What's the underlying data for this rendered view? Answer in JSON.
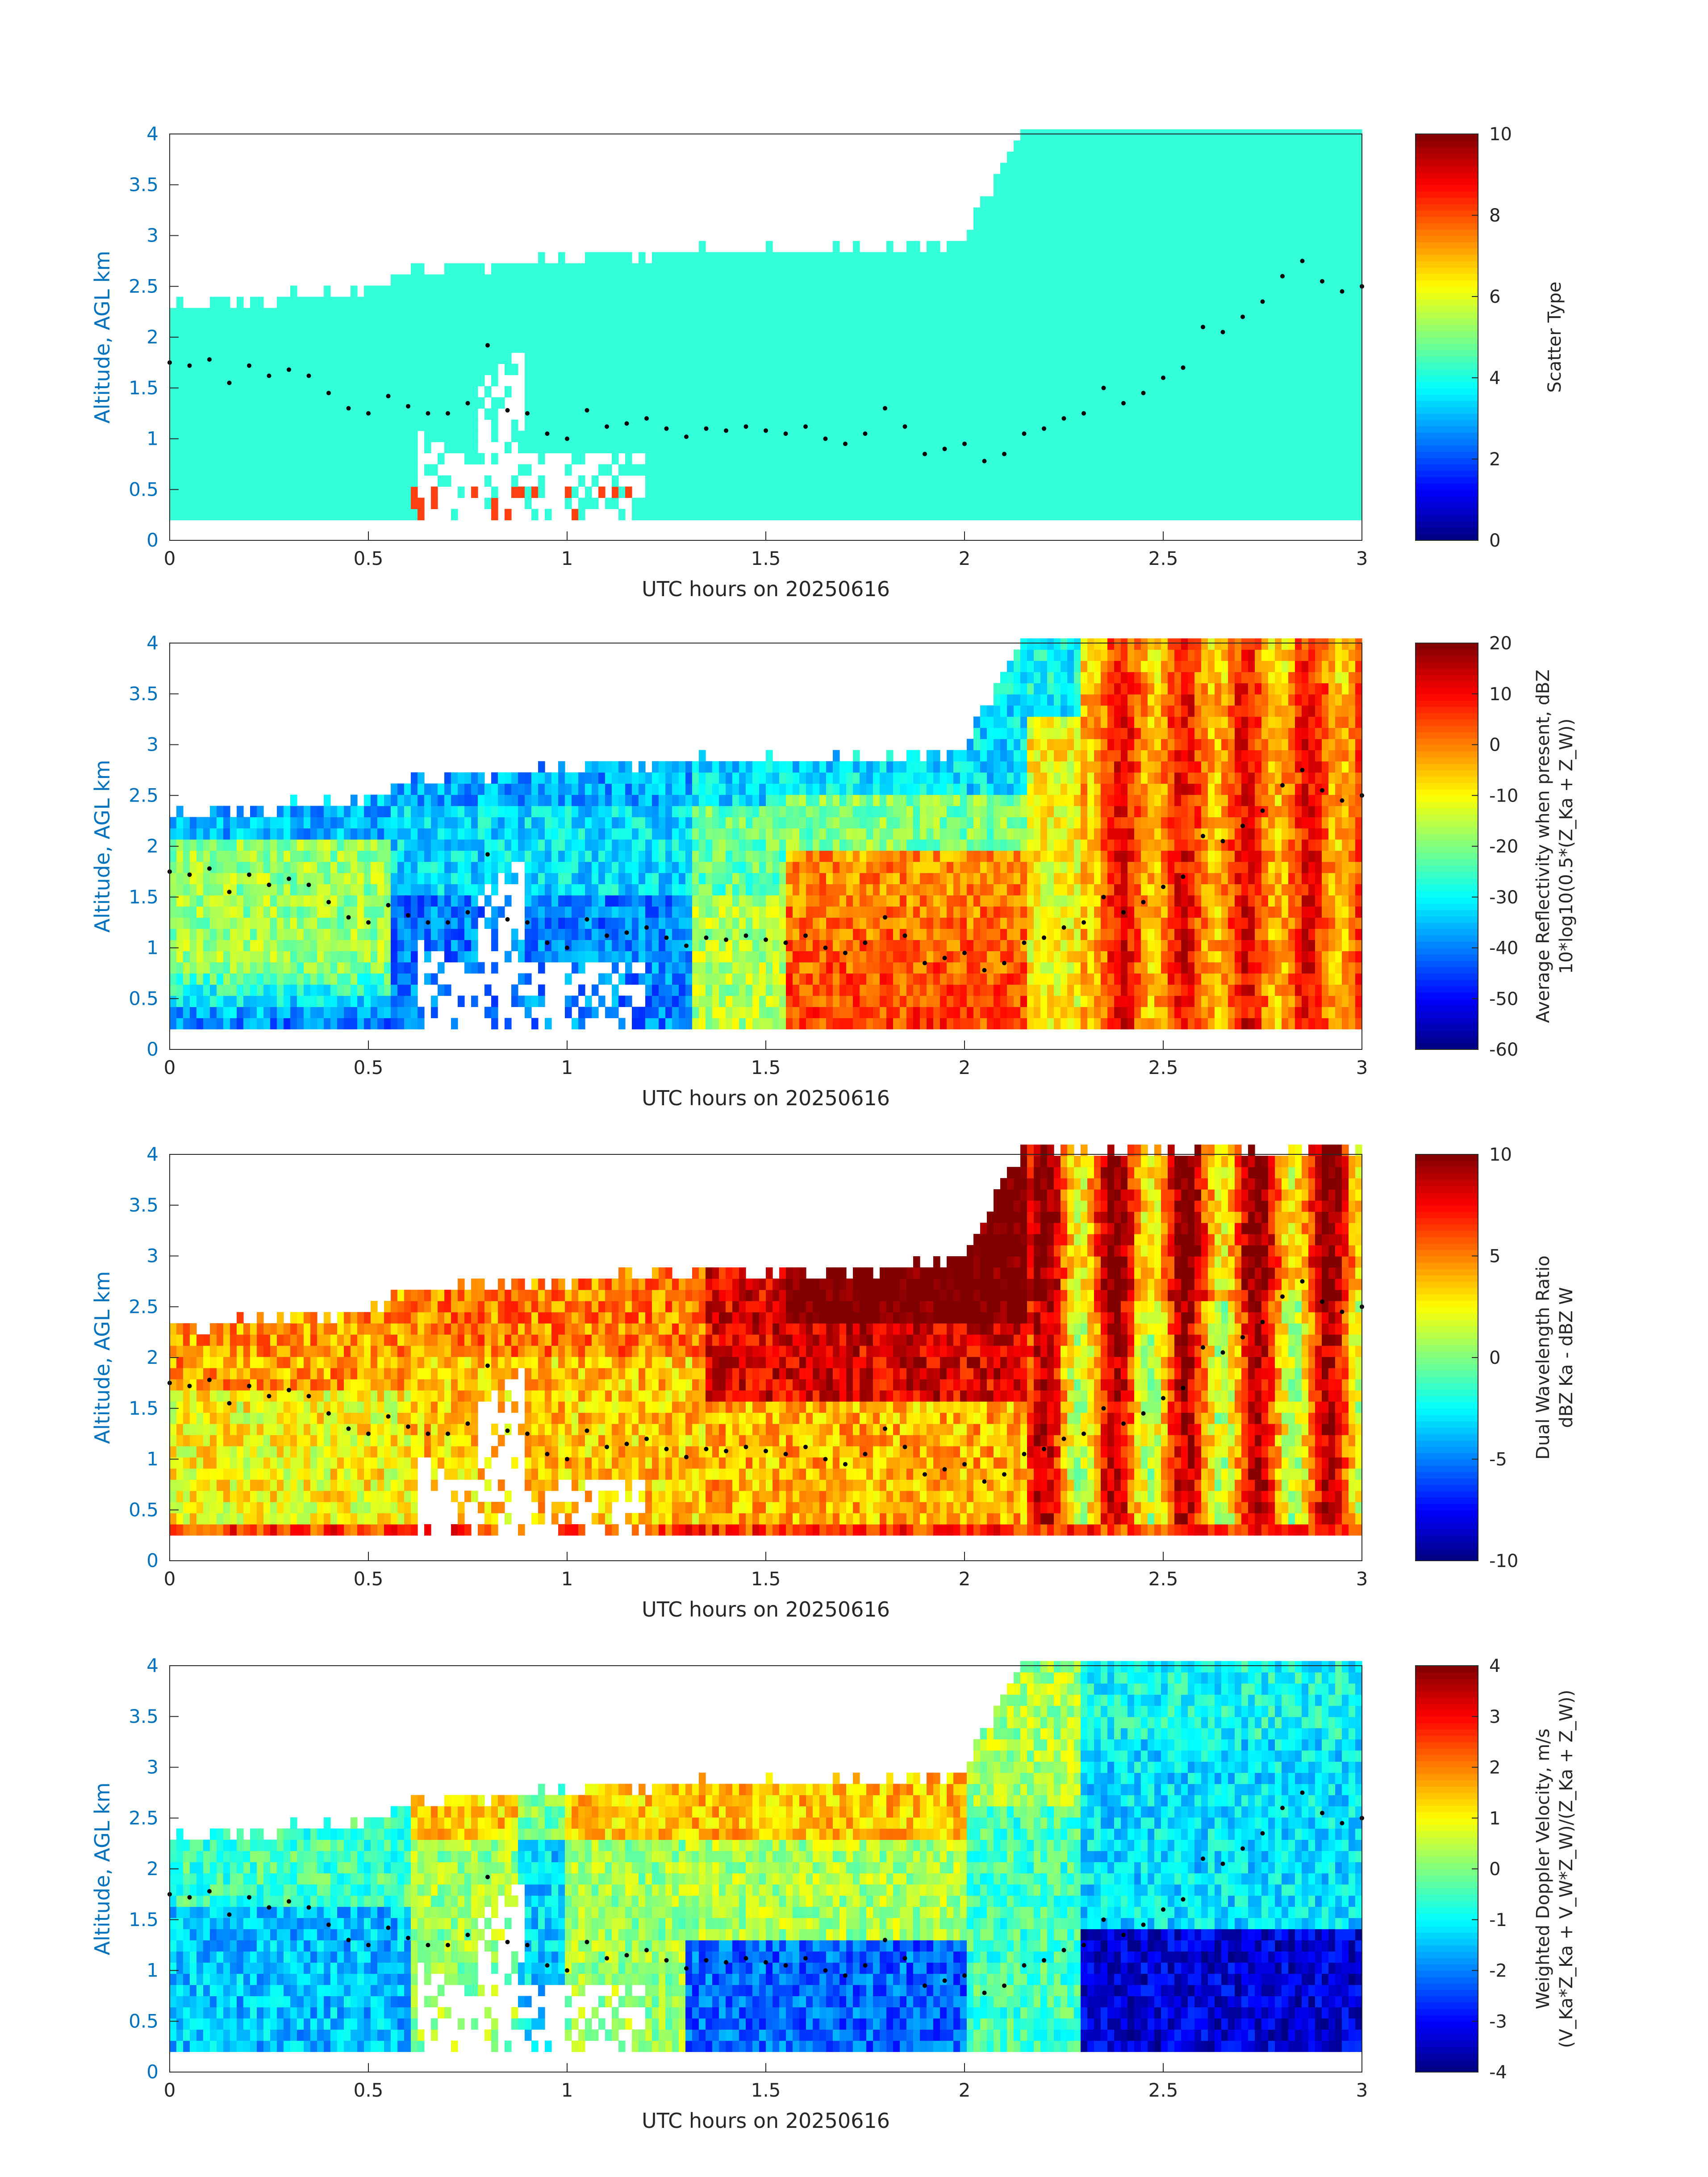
{
  "figure": {
    "panels": [
      {
        "id": "scatter-type",
        "xlabel": "UTC hours on 20250616",
        "ylabel": "Altitude, AGL km",
        "x_ticks": [
          "0",
          "0.5",
          "1",
          "1.5",
          "2",
          "2.5",
          "3"
        ],
        "y_ticks": [
          "0",
          "0.5",
          "1",
          "1.5",
          "2",
          "2.5",
          "3",
          "3.5",
          "4"
        ],
        "colorbar": {
          "label_lines": [
            "Scatter Type"
          ],
          "ticks": [
            "0",
            "2",
            "4",
            "6",
            "8",
            "10"
          ]
        }
      },
      {
        "id": "reflectivity",
        "xlabel": "UTC hours on 20250616",
        "ylabel": "Altitude, AGL km",
        "x_ticks": [
          "0",
          "0.5",
          "1",
          "1.5",
          "2",
          "2.5",
          "3"
        ],
        "y_ticks": [
          "0",
          "0.5",
          "1",
          "1.5",
          "2",
          "2.5",
          "3",
          "3.5",
          "4"
        ],
        "colorbar": {
          "label_lines": [
            "Average Reflectivity when present, dBZ",
            "10*log10(0.5*(Z_Ka + Z_W))"
          ],
          "ticks": [
            "-60",
            "-50",
            "-40",
            "-30",
            "-20",
            "-10",
            "0",
            "10",
            "20"
          ]
        }
      },
      {
        "id": "dwr",
        "xlabel": "UTC hours on 20250616",
        "ylabel": "Altitude, AGL km",
        "x_ticks": [
          "0",
          "0.5",
          "1",
          "1.5",
          "2",
          "2.5",
          "3"
        ],
        "y_ticks": [
          "0",
          "0.5",
          "1",
          "1.5",
          "2",
          "2.5",
          "3",
          "3.5",
          "4"
        ],
        "colorbar": {
          "label_lines": [
            "Dual Wavelength Ratio",
            "dBZ Ka - dBZ W"
          ],
          "ticks": [
            "-10",
            "-5",
            "0",
            "5",
            "10"
          ]
        }
      },
      {
        "id": "doppler",
        "xlabel": "UTC hours on 20250616",
        "ylabel": "Altitude, AGL km",
        "x_ticks": [
          "0",
          "0.5",
          "1",
          "1.5",
          "2",
          "2.5",
          "3"
        ],
        "y_ticks": [
          "0",
          "0.5",
          "1",
          "1.5",
          "2",
          "2.5",
          "3",
          "3.5",
          "4"
        ],
        "colorbar": {
          "label_lines": [
            "Weighted Doppler Velocity, m/s",
            "(V_Ka*Z_Ka + V_W*Z_W)/(Z_Ka + Z_W))"
          ],
          "ticks": [
            "-4",
            "-3",
            "-2",
            "-1",
            "0",
            "1",
            "2",
            "3",
            "4"
          ]
        }
      }
    ]
  },
  "colors": {
    "axis_label": "#0072BD",
    "tick_text": "#262626",
    "scatter_cloud": "#33FFD9",
    "scatter_precip": "#FF4010",
    "marker": "#000000"
  },
  "chart_data": [
    {
      "type": "heatmap",
      "xlabel": "UTC hours on 20250616",
      "ylabel": "Altitude, AGL km",
      "xlim": [
        0,
        3
      ],
      "ylim": [
        0,
        4
      ],
      "colorbar_label": "Scatter Type",
      "clim": [
        0,
        10
      ],
      "colormap": "jet",
      "description": "Echo present mostly scatter type ~4 (cyan); small patches of ~9 (red) near 0.6-0.85 h below 0.5 km",
      "cloud_top_km": [
        [
          0.0,
          2.25
        ],
        [
          0.5,
          2.4
        ],
        [
          0.6,
          2.6
        ],
        [
          1.3,
          2.8
        ],
        [
          1.8,
          2.8
        ],
        [
          2.0,
          2.9
        ],
        [
          2.15,
          4.0
        ],
        [
          3.0,
          4.0
        ]
      ]
    },
    {
      "type": "heatmap",
      "xlabel": "UTC hours on 20250616",
      "ylabel": "Altitude, AGL km",
      "xlim": [
        0,
        3
      ],
      "ylim": [
        0,
        4
      ],
      "colorbar_label": "Average Reflectivity when present, dBZ",
      "clim": [
        -60,
        20
      ],
      "colormap": "jet",
      "cloud_top_km": [
        [
          0.0,
          2.25
        ],
        [
          0.5,
          2.4
        ],
        [
          0.6,
          2.6
        ],
        [
          1.3,
          2.8
        ],
        [
          1.8,
          2.8
        ],
        [
          2.0,
          2.9
        ],
        [
          2.15,
          4.0
        ],
        [
          3.0,
          4.0
        ]
      ]
    },
    {
      "type": "heatmap",
      "xlabel": "UTC hours on 20250616",
      "ylabel": "Altitude, AGL km",
      "xlim": [
        0,
        3
      ],
      "ylim": [
        0,
        4
      ],
      "colorbar_label": "Dual Wavelength Ratio",
      "clim": [
        -10,
        10
      ],
      "colormap": "jet",
      "cloud_top_km": [
        [
          0.0,
          2.25
        ],
        [
          0.5,
          2.4
        ],
        [
          0.6,
          2.6
        ],
        [
          1.3,
          2.8
        ],
        [
          1.8,
          2.8
        ],
        [
          2.0,
          2.9
        ],
        [
          2.15,
          4.0
        ],
        [
          3.0,
          4.0
        ]
      ]
    },
    {
      "type": "heatmap",
      "xlabel": "UTC hours on 20250616",
      "ylabel": "Altitude, AGL km",
      "xlim": [
        0,
        3
      ],
      "ylim": [
        0,
        4
      ],
      "colorbar_label": "Weighted Doppler Velocity, m/s",
      "clim": [
        -4,
        4
      ],
      "colormap": "jet",
      "cloud_top_km": [
        [
          0.0,
          2.25
        ],
        [
          0.5,
          2.4
        ],
        [
          0.6,
          2.6
        ],
        [
          1.3,
          2.8
        ],
        [
          1.8,
          2.8
        ],
        [
          2.0,
          2.9
        ],
        [
          2.15,
          4.0
        ],
        [
          3.0,
          4.0
        ]
      ]
    }
  ],
  "marker_series": {
    "name": "",
    "points": [
      [
        0.0,
        1.75
      ],
      [
        0.05,
        1.72
      ],
      [
        0.1,
        1.78
      ],
      [
        0.15,
        1.55
      ],
      [
        0.2,
        1.72
      ],
      [
        0.25,
        1.62
      ],
      [
        0.3,
        1.68
      ],
      [
        0.35,
        1.62
      ],
      [
        0.4,
        1.45
      ],
      [
        0.45,
        1.3
      ],
      [
        0.5,
        1.25
      ],
      [
        0.55,
        1.42
      ],
      [
        0.6,
        1.32
      ],
      [
        0.65,
        1.25
      ],
      [
        0.7,
        1.25
      ],
      [
        0.75,
        1.35
      ],
      [
        0.8,
        1.92
      ],
      [
        0.85,
        1.28
      ],
      [
        0.9,
        1.25
      ],
      [
        0.95,
        1.05
      ],
      [
        1.0,
        1.0
      ],
      [
        1.05,
        1.28
      ],
      [
        1.1,
        1.12
      ],
      [
        1.15,
        1.15
      ],
      [
        1.2,
        1.2
      ],
      [
        1.25,
        1.1
      ],
      [
        1.3,
        1.02
      ],
      [
        1.35,
        1.1
      ],
      [
        1.4,
        1.08
      ],
      [
        1.45,
        1.12
      ],
      [
        1.5,
        1.08
      ],
      [
        1.55,
        1.05
      ],
      [
        1.6,
        1.12
      ],
      [
        1.65,
        1.0
      ],
      [
        1.7,
        0.95
      ],
      [
        1.75,
        1.05
      ],
      [
        1.8,
        1.3
      ],
      [
        1.85,
        1.12
      ],
      [
        1.9,
        0.85
      ],
      [
        1.95,
        0.9
      ],
      [
        2.0,
        0.95
      ],
      [
        2.05,
        0.78
      ],
      [
        2.1,
        0.85
      ],
      [
        2.15,
        1.05
      ],
      [
        2.2,
        1.1
      ],
      [
        2.25,
        1.2
      ],
      [
        2.3,
        1.25
      ],
      [
        2.35,
        1.5
      ],
      [
        2.4,
        1.35
      ],
      [
        2.45,
        1.45
      ],
      [
        2.5,
        1.6
      ],
      [
        2.55,
        1.7
      ],
      [
        2.6,
        2.1
      ],
      [
        2.65,
        2.05
      ],
      [
        2.7,
        2.2
      ],
      [
        2.75,
        2.35
      ],
      [
        2.8,
        2.6
      ],
      [
        2.85,
        2.75
      ],
      [
        2.9,
        2.55
      ],
      [
        2.95,
        2.45
      ],
      [
        3.0,
        2.5
      ]
    ]
  }
}
